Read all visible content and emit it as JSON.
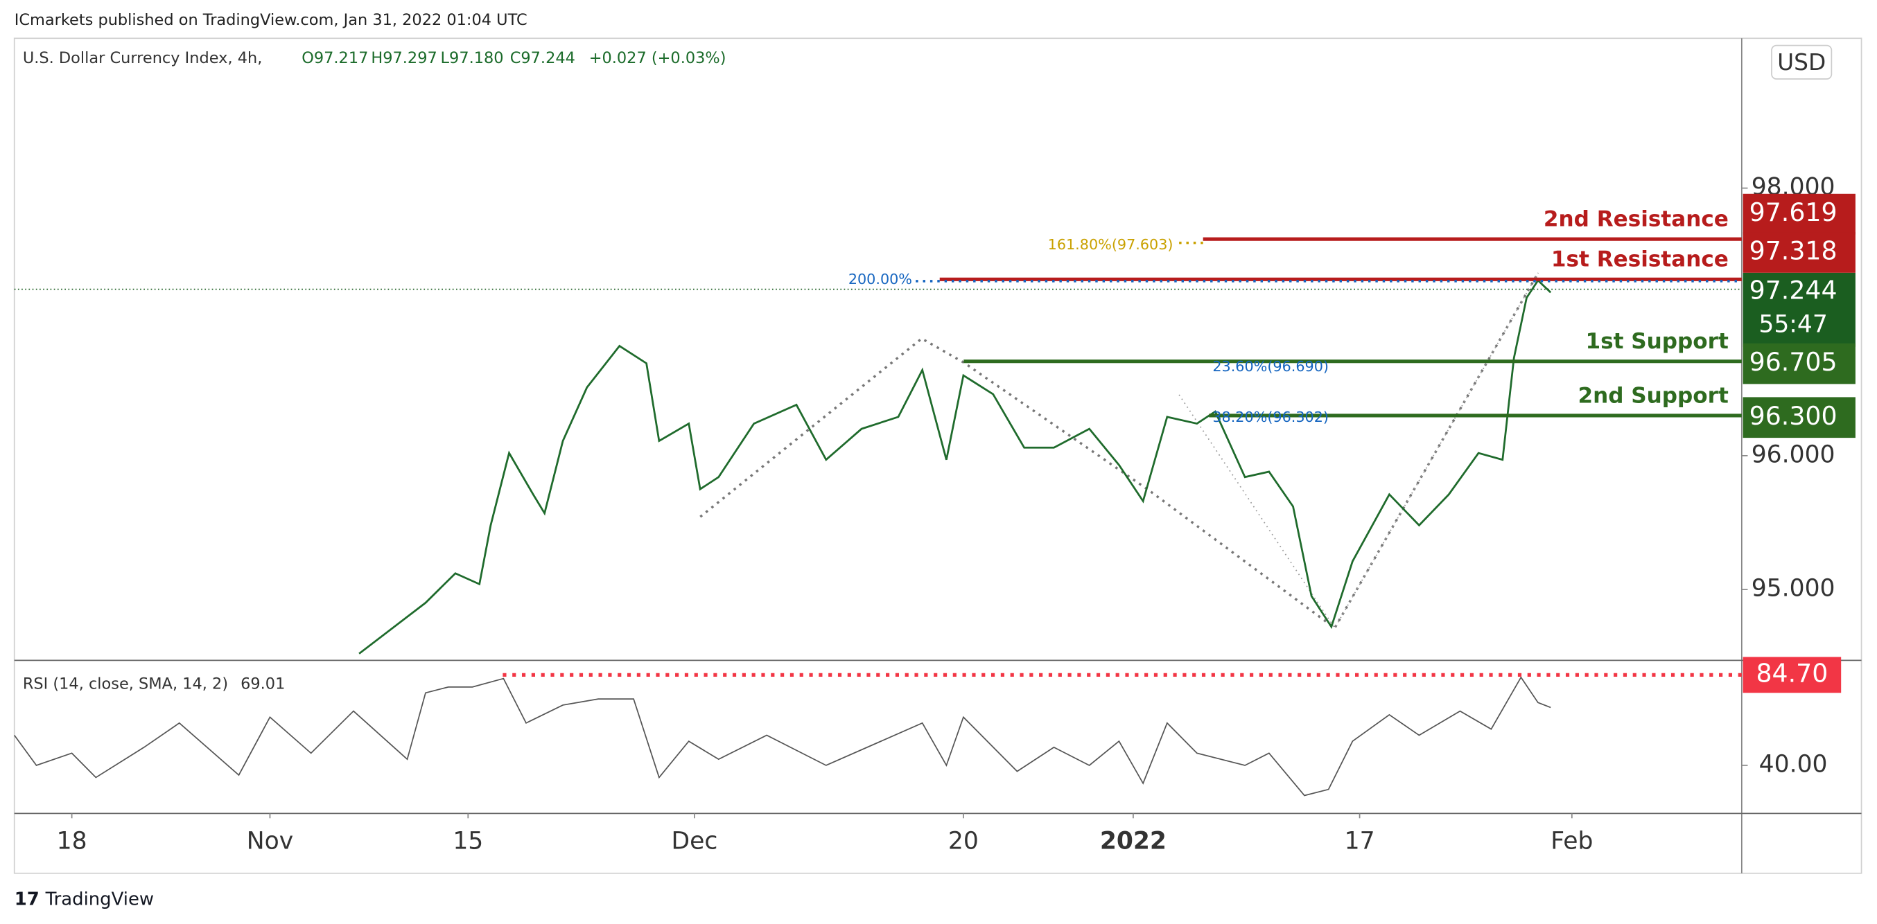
{
  "header": {
    "publisher": "ICmarkets published on TradingView.com, Jan 31, 2022 01:04 UTC"
  },
  "footer": {
    "brand": "TradingView"
  },
  "chart_data": [
    {
      "type": "line",
      "title": "U.S. Dollar Currency Index, 4h,",
      "ohlc": [
        "O97.217",
        "H97.297",
        "L97.180",
        "C97.244",
        "+0.027 (+0.03%)"
      ],
      "currency": "USD",
      "color": "#1f6b2c",
      "x": [
        20.3,
        25.0,
        27.1,
        28.8,
        29.6,
        30.9,
        32.6,
        33.4,
        34.7,
        36.4,
        38.7,
        40.6,
        41.5,
        43.6,
        44.4,
        45.7,
        48.2,
        51.2,
        53.3,
        55.8,
        58.4,
        60.1,
        61.8,
        63.0,
        65.1,
        67.3,
        69.4,
        71.9,
        74.0,
        75.7,
        77.4,
        79.5,
        80.8,
        82.9,
        84.6,
        86.3,
        87.6,
        89.0,
        90.5,
        93.1,
        95.2,
        97.3,
        99.4,
        101.1,
        101.9,
        102.8,
        103.6,
        104.5
      ],
      "values": [
        94.52,
        94.9,
        95.12,
        95.04,
        95.48,
        96.02,
        95.71,
        95.57,
        96.11,
        96.51,
        96.82,
        96.69,
        96.11,
        96.24,
        95.75,
        95.84,
        96.24,
        96.38,
        95.97,
        96.2,
        96.29,
        96.64,
        95.97,
        96.6,
        96.46,
        96.06,
        96.06,
        96.2,
        95.93,
        95.66,
        96.29,
        96.24,
        96.33,
        95.84,
        95.88,
        95.62,
        94.95,
        94.72,
        95.21,
        95.71,
        95.48,
        95.71,
        96.02,
        95.97,
        96.73,
        97.18,
        97.31,
        97.22
      ],
      "xlim": [
        -4.06,
        118
      ],
      "xticks": [
        {
          "value": 0,
          "label": "18"
        },
        {
          "value": 14,
          "label": "Nov"
        },
        {
          "value": 28,
          "label": "15"
        },
        {
          "value": 44,
          "label": "Dec"
        },
        {
          "value": 63,
          "label": "20"
        },
        {
          "value": 75,
          "label": "2022"
        },
        {
          "value": 91,
          "label": "17"
        },
        {
          "value": 106,
          "label": "Feb"
        }
      ],
      "ylim": [
        94.47,
        99.12
      ],
      "yticks": [
        {
          "value": 95,
          "label": "95.000"
        },
        {
          "value": 96,
          "label": "96.000"
        },
        {
          "value": 98,
          "label": "98.000"
        }
      ],
      "levels": [
        {
          "name": "2nd Resistance",
          "value": 97.619,
          "value_label": "97.619",
          "color": "#b71c1c"
        },
        {
          "name": "1st Resistance",
          "value": 97.318,
          "value_label": "97.318",
          "color": "#b71c1c"
        },
        {
          "name": "1st Support",
          "value": 96.705,
          "value_label": "96.705",
          "color": "#2e6b1f"
        },
        {
          "name": "2nd Support",
          "value": 96.3,
          "value_label": "96.300",
          "color": "#2e6b1f"
        }
      ],
      "fib_labels": [
        "161.80%(97.603)",
        "200.00%",
        "23.60%(96.690)",
        "38.20%(96.302)"
      ],
      "last": {
        "value": 97.244,
        "countdown": "55:47",
        "color": "#1b5e20"
      }
    },
    {
      "type": "line",
      "title": "RSI (14, close, SMA, 14, 2)",
      "current": 69.01,
      "color": "#555555",
      "x": [
        -4.06,
        -2.5,
        0,
        1.7,
        5.1,
        7.6,
        11.8,
        14.0,
        16.9,
        19.9,
        23.7,
        25.0,
        26.6,
        28.3,
        30.5,
        32.1,
        34.7,
        37.2,
        39.7,
        41.5,
        43.6,
        45.7,
        49.1,
        53.3,
        60.1,
        61.8,
        63.0,
        66.8,
        69.4,
        71.9,
        74.0,
        75.7,
        77.4,
        79.5,
        82.9,
        84.6,
        87.1,
        88.8,
        90.5,
        93.1,
        95.2,
        98.1,
        100.3,
        102.4,
        103.6,
        104.5
      ],
      "values": [
        54.9,
        40.0,
        46.0,
        34.0,
        48.9,
        60.9,
        35.2,
        63.8,
        46.0,
        66.8,
        43.0,
        75.8,
        78.7,
        78.7,
        82.9,
        60.9,
        69.8,
        72.8,
        72.8,
        34.0,
        51.9,
        43.0,
        54.9,
        40.0,
        60.9,
        40.0,
        63.8,
        37.0,
        48.9,
        40.0,
        51.9,
        31.1,
        60.9,
        46.0,
        40.0,
        46.0,
        25.1,
        28.1,
        51.9,
        65.0,
        54.9,
        66.8,
        57.9,
        83.5,
        71.0,
        68.6
      ],
      "ylim": [
        16.2,
        91.9
      ],
      "yticks": [
        {
          "value": 40,
          "label": "40.00"
        }
      ],
      "level": {
        "value": 84.7,
        "value_label": "84.70",
        "color": "#f23645"
      }
    }
  ]
}
